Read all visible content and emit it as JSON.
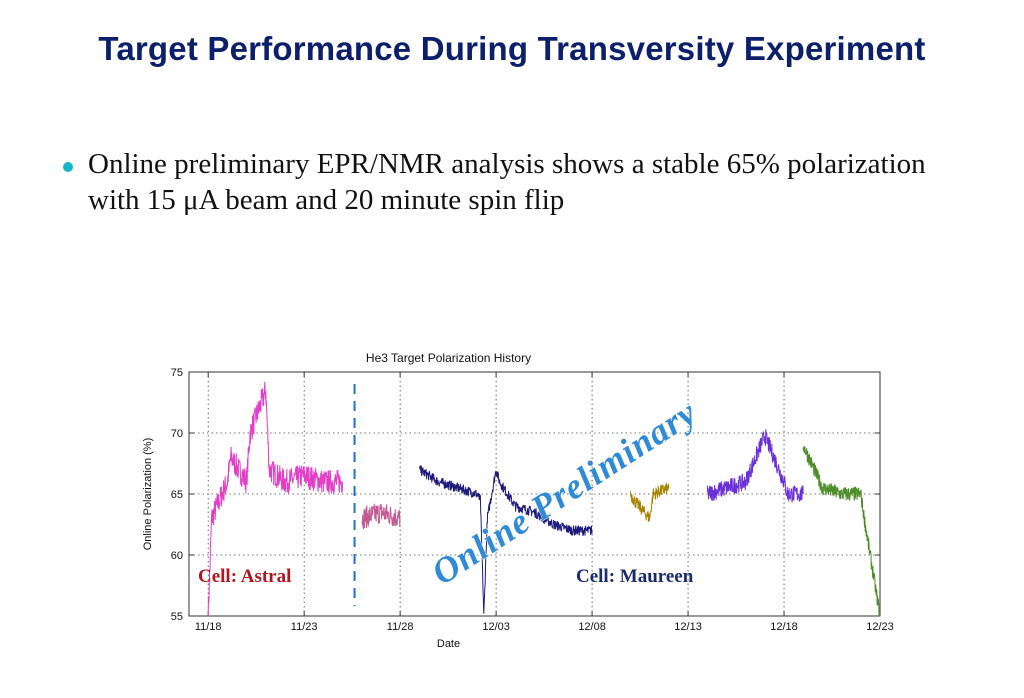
{
  "slide": {
    "title": "Target Performance During Transversity  Experiment",
    "bullet": "Online preliminary EPR/NMR analysis shows a stable 65% polarization with 15 μA beam and 20 minute spin flip"
  },
  "chart_data": {
    "type": "line",
    "title": "He3 Target Polarization History",
    "xlabel": "Date",
    "ylabel": "Online Polarization (%)",
    "x_ticks": [
      "11/18",
      "11/23",
      "11/28",
      "12/03",
      "12/08",
      "12/13",
      "12/18",
      "12/23"
    ],
    "xlim": [
      "2008-11-17",
      "2008-12-23"
    ],
    "ylim": [
      55,
      75
    ],
    "y_ticks": [
      55,
      60,
      65,
      70,
      75
    ],
    "grid": "dotted",
    "cell_change_date": "2008-11-25",
    "annotations": [
      {
        "text": "Cell: Astral",
        "color": "#b0171f"
      },
      {
        "text": "Cell: Maureen",
        "color": "#1c2a6e"
      },
      {
        "text": "Online Preliminary",
        "color": "#2f8ad8"
      }
    ],
    "series": [
      {
        "color": "#e23fc6",
        "points": [
          [
            "2008-11-18",
            55
          ],
          [
            "2008-11-18",
            63
          ],
          [
            "2008-11-19",
            66
          ],
          [
            "2008-11-19",
            68
          ],
          [
            "2008-11-20",
            66
          ],
          [
            "2008-11-20",
            70
          ],
          [
            "2008-11-21",
            73.5
          ],
          [
            "2008-11-21",
            67
          ],
          [
            "2008-11-22",
            66
          ],
          [
            "2008-11-23",
            66.5
          ],
          [
            "2008-11-24",
            66
          ],
          [
            "2008-11-25",
            66
          ]
        ],
        "noise": 1.0
      },
      {
        "color": "#c25a92",
        "points": [
          [
            "2008-11-26",
            63
          ],
          [
            "2008-11-27",
            63.5
          ],
          [
            "2008-11-28",
            63
          ]
        ],
        "noise": 0.9
      },
      {
        "color": "#1e1a7a",
        "points": [
          [
            "2008-11-29",
            67
          ],
          [
            "2008-11-30",
            66
          ],
          [
            "2008-12-01",
            65.5
          ],
          [
            "2008-12-02",
            65
          ],
          [
            "2008-12-02",
            64.5
          ],
          [
            "2008-12-02",
            55
          ],
          [
            "2008-12-02",
            63
          ],
          [
            "2008-12-03",
            67
          ],
          [
            "2008-12-03",
            66
          ],
          [
            "2008-12-04",
            64
          ],
          [
            "2008-12-05",
            63.5
          ],
          [
            "2008-12-06",
            62.5
          ],
          [
            "2008-12-07",
            62
          ],
          [
            "2008-12-08",
            62
          ]
        ],
        "noise": 0.4
      },
      {
        "color": "#a68400",
        "points": [
          [
            "2008-12-10",
            65
          ],
          [
            "2008-12-10",
            64.5
          ],
          [
            "2008-12-11",
            63
          ],
          [
            "2008-12-11",
            65
          ],
          [
            "2008-12-12",
            65.5
          ]
        ],
        "noise": 0.5
      },
      {
        "color": "#6a2fd6",
        "points": [
          [
            "2008-12-14",
            65
          ],
          [
            "2008-12-15",
            65.5
          ],
          [
            "2008-12-16",
            66
          ],
          [
            "2008-12-17",
            69.8
          ],
          [
            "2008-12-18",
            66
          ],
          [
            "2008-12-18",
            65
          ],
          [
            "2008-12-19",
            65
          ]
        ],
        "noise": 0.7
      },
      {
        "color": "#4e8e2a",
        "points": [
          [
            "2008-12-19",
            69
          ],
          [
            "2008-12-20",
            65.5
          ],
          [
            "2008-12-21",
            65
          ],
          [
            "2008-12-22",
            65
          ],
          [
            "2008-12-22",
            63
          ],
          [
            "2008-12-23",
            55
          ]
        ],
        "noise": 0.6
      }
    ]
  }
}
